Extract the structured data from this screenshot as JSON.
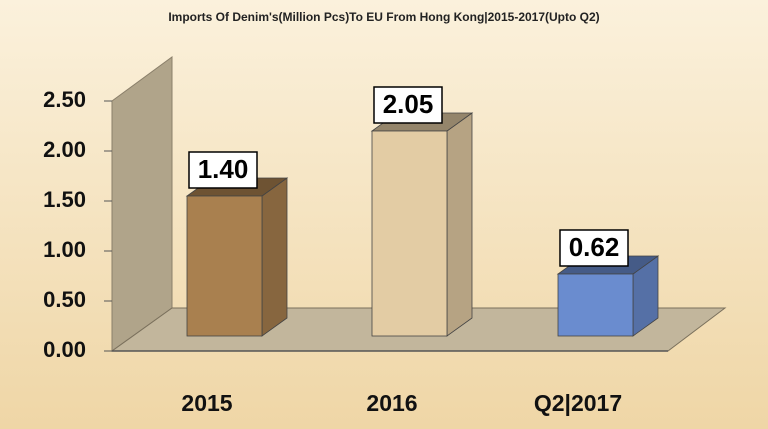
{
  "chart_data": {
    "type": "bar3d",
    "title": "Imports Of Denim's(Million Pcs)To EU From Hong Kong|2015-2017(Upto Q2)",
    "categories": [
      "2015",
      "2016",
      "Q2|2017"
    ],
    "values": [
      1.4,
      2.05,
      0.62
    ],
    "value_labels": [
      "1.40",
      "2.05",
      "0.62"
    ],
    "colors": [
      "#a9804f",
      "#e3cca4",
      "#6a8ccf"
    ],
    "ylim": [
      0,
      2.5
    ],
    "yticks": [
      {
        "value": 0,
        "label": "0.00"
      },
      {
        "value": 0.5,
        "label": "0.50"
      },
      {
        "value": 1,
        "label": "1.00"
      },
      {
        "value": 1.5,
        "label": "1.50"
      },
      {
        "value": 2,
        "label": "2.00"
      },
      {
        "value": 2.5,
        "label": "2.50"
      }
    ]
  }
}
